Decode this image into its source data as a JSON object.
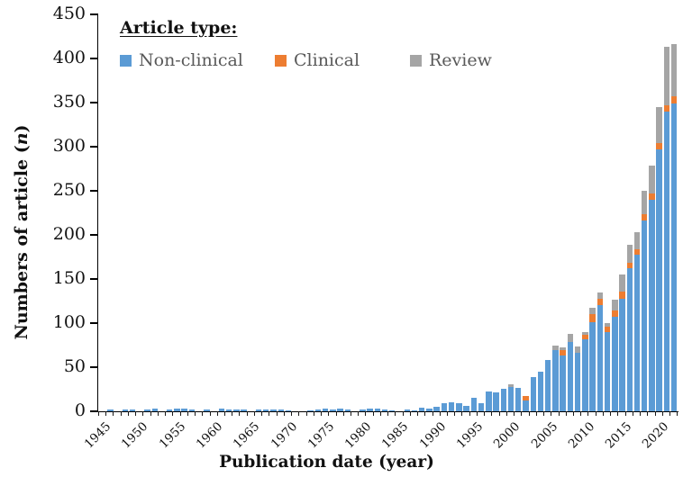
{
  "figure": {
    "y_axis": {
      "title_pre": "Numbers of article (",
      "title_var": "n",
      "title_post": ")",
      "tick_labels": [
        "0",
        "50",
        "100",
        "150",
        "200",
        "250",
        "300",
        "350",
        "400",
        "450"
      ]
    },
    "x_axis": {
      "title": "Publication date (year)",
      "tick_labels": [
        "1945",
        "1950",
        "1955",
        "1960",
        "1965",
        "1970",
        "1975",
        "1980",
        "1985",
        "1990",
        "1995",
        "2000",
        "2005",
        "2010",
        "2015",
        "2020"
      ]
    },
    "legend": {
      "title": "Article type:",
      "items": [
        {
          "label": "Non-clinical",
          "color": "#5B9BD5"
        },
        {
          "label": "Clinical",
          "color": "#ED7D31"
        },
        {
          "label": "Review",
          "color": "#A5A5A5"
        }
      ]
    }
  },
  "chart_data": {
    "type": "bar",
    "stacked": true,
    "title": "",
    "xlabel": "Publication date (year)",
    "ylabel": "Numbers of article (n)",
    "ylim": [
      0,
      450
    ],
    "ytick_step": 50,
    "grid": false,
    "legend_position": "top-left",
    "x": [
      1945,
      1946,
      1947,
      1948,
      1949,
      1950,
      1951,
      1952,
      1953,
      1954,
      1955,
      1956,
      1957,
      1958,
      1959,
      1960,
      1961,
      1962,
      1963,
      1964,
      1965,
      1966,
      1967,
      1968,
      1969,
      1970,
      1971,
      1972,
      1973,
      1974,
      1975,
      1976,
      1977,
      1978,
      1979,
      1980,
      1981,
      1982,
      1983,
      1984,
      1985,
      1986,
      1987,
      1988,
      1989,
      1990,
      1991,
      1992,
      1993,
      1994,
      1995,
      1996,
      1997,
      1998,
      1999,
      2000,
      2001,
      2002,
      2003,
      2004,
      2005,
      2006,
      2007,
      2008,
      2009,
      2010,
      2011,
      2012,
      2013,
      2014,
      2015,
      2016,
      2017,
      2018,
      2019,
      2020,
      2021,
      2022
    ],
    "series": [
      {
        "name": "Non-clinical",
        "color": "#5B9BD5",
        "values": [
          0,
          2,
          0,
          2,
          2,
          0,
          2,
          3,
          0,
          2,
          3,
          3,
          2,
          0,
          2,
          0,
          3,
          2,
          2,
          2,
          0,
          2,
          2,
          2,
          2,
          1,
          0,
          0,
          1,
          2,
          3,
          2,
          3,
          2,
          0,
          2,
          3,
          3,
          2,
          1,
          0,
          2,
          1,
          4,
          3,
          5,
          9,
          10,
          9,
          6,
          15,
          9,
          22,
          21,
          26,
          28,
          27,
          12,
          39,
          45,
          58,
          69,
          63,
          79,
          66,
          82,
          101,
          120,
          90,
          107,
          128,
          162,
          178,
          216,
          240,
          297,
          340,
          349
        ]
      },
      {
        "name": "Clinical",
        "color": "#ED7D31",
        "values": [
          0,
          0,
          0,
          0,
          0,
          0,
          0,
          0,
          0,
          0,
          0,
          0,
          0,
          0,
          0,
          0,
          0,
          0,
          0,
          0,
          0,
          0,
          0,
          0,
          0,
          0,
          0,
          0,
          0,
          0,
          0,
          0,
          0,
          0,
          0,
          0,
          0,
          0,
          0,
          0,
          0,
          0,
          0,
          0,
          0,
          0,
          0,
          0,
          0,
          0,
          0,
          0,
          0,
          0,
          0,
          0,
          0,
          5,
          0,
          0,
          0,
          0,
          6,
          0,
          0,
          5,
          9,
          8,
          6,
          7,
          8,
          6,
          6,
          7,
          7,
          7,
          7,
          8
        ]
      },
      {
        "name": "Review",
        "color": "#A5A5A5",
        "values": [
          0,
          0,
          0,
          0,
          0,
          0,
          0,
          0,
          0,
          0,
          0,
          0,
          0,
          0,
          0,
          0,
          0,
          0,
          0,
          0,
          0,
          0,
          0,
          0,
          0,
          0,
          0,
          0,
          0,
          0,
          0,
          0,
          0,
          0,
          0,
          0,
          0,
          0,
          0,
          0,
          0,
          0,
          0,
          0,
          0,
          0,
          0,
          0,
          0,
          0,
          0,
          0,
          0,
          0,
          0,
          3,
          0,
          0,
          0,
          0,
          0,
          6,
          3,
          9,
          7,
          3,
          7,
          7,
          4,
          13,
          19,
          21,
          19,
          27,
          32,
          41,
          66,
          59
        ]
      }
    ]
  }
}
